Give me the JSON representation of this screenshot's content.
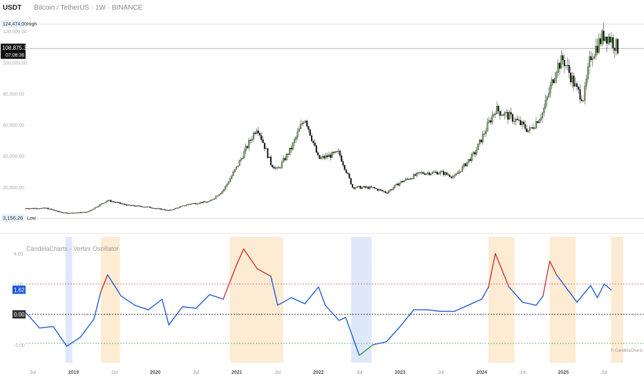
{
  "header": {
    "symbol": "USDT",
    "description": "Bitcoin / TetherUS · 1W · BINANCE"
  },
  "price_axis": {
    "ticks": [
      "120,000.00",
      "100,000.00",
      "80,000.00",
      "60,000.00",
      "40,000.00",
      "20,000.00",
      "0.00"
    ],
    "high_value": "124,474.00",
    "high_label": "High",
    "low_value": "3,156.26",
    "low_label": "Low",
    "current_price": "108,875.33",
    "countdown": "07:08:36"
  },
  "indicator": {
    "title": "CandelaCharts - Vertex Oscillator",
    "ticks": [
      "4.00",
      "2.00",
      "0.00",
      "-2.00"
    ],
    "current_value": "1.62",
    "zero_value": "0.00",
    "watermark": "© CandelaCharts"
  },
  "time_axis": {
    "labels": [
      "Jul",
      "2019",
      "Jul",
      "2020",
      "Jul",
      "2021",
      "Jul",
      "2022",
      "Jul",
      "2023",
      "Jul",
      "2024",
      "Jul",
      "2025",
      "Jul"
    ]
  },
  "colors": {
    "bull_candle": "#6aa84f",
    "bear_candle": "#111111",
    "osc_neutral": "#1f5bd6",
    "osc_overbought": "#d32f2f",
    "osc_oversold": "#2e9e3e",
    "overbought_zone": "#fde6c8",
    "oversold_zone": "#dbe6fb",
    "upper_band": "#e57373",
    "lower_band": "#66bb6a"
  },
  "chart_data": [
    {
      "type": "candlestick",
      "title": "Bitcoin / TetherUS · 1W · BINANCE",
      "x_range": [
        "2018-06",
        "2025-09"
      ],
      "ylim": [
        0,
        124474
      ],
      "close_path": [
        {
          "t": "2018-06",
          "close": 6400
        },
        {
          "t": "2018-09",
          "close": 6500
        },
        {
          "t": "2018-11",
          "close": 4000
        },
        {
          "t": "2018-12",
          "close": 3300
        },
        {
          "t": "2019-03",
          "close": 4000
        },
        {
          "t": "2019-06",
          "close": 11500
        },
        {
          "t": "2019-09",
          "close": 8300
        },
        {
          "t": "2019-12",
          "close": 7200
        },
        {
          "t": "2020-03",
          "close": 5000
        },
        {
          "t": "2020-06",
          "close": 9200
        },
        {
          "t": "2020-09",
          "close": 10800
        },
        {
          "t": "2020-11",
          "close": 18000
        },
        {
          "t": "2021-01",
          "close": 33000
        },
        {
          "t": "2021-04",
          "close": 59000
        },
        {
          "t": "2021-06",
          "close": 35000
        },
        {
          "t": "2021-07",
          "close": 31000
        },
        {
          "t": "2021-09",
          "close": 45000
        },
        {
          "t": "2021-11",
          "close": 65000
        },
        {
          "t": "2022-01",
          "close": 38000
        },
        {
          "t": "2022-04",
          "close": 42000
        },
        {
          "t": "2022-06",
          "close": 20000
        },
        {
          "t": "2022-09",
          "close": 19500
        },
        {
          "t": "2022-11",
          "close": 16500
        },
        {
          "t": "2023-01",
          "close": 23000
        },
        {
          "t": "2023-04",
          "close": 29000
        },
        {
          "t": "2023-07",
          "close": 29500
        },
        {
          "t": "2023-09",
          "close": 26500
        },
        {
          "t": "2023-12",
          "close": 42000
        },
        {
          "t": "2024-03",
          "close": 70000
        },
        {
          "t": "2024-06",
          "close": 63000
        },
        {
          "t": "2024-08",
          "close": 56000
        },
        {
          "t": "2024-10",
          "close": 68000
        },
        {
          "t": "2024-12",
          "close": 97000
        },
        {
          "t": "2025-01",
          "close": 102000
        },
        {
          "t": "2025-03",
          "close": 82000
        },
        {
          "t": "2025-04",
          "close": 77000
        },
        {
          "t": "2025-05",
          "close": 104000
        },
        {
          "t": "2025-07",
          "close": 118000
        },
        {
          "t": "2025-08",
          "close": 115000
        },
        {
          "t": "2025-09",
          "close": 108875
        }
      ]
    },
    {
      "type": "line",
      "title": "CandelaCharts - Vertex Oscillator",
      "ylim": [
        -3.2,
        5.3
      ],
      "upper_threshold": 2.0,
      "lower_threshold": -2.0,
      "series": [
        {
          "t": "2018-06",
          "v": 0.1
        },
        {
          "t": "2018-08",
          "v": -0.9
        },
        {
          "t": "2018-10",
          "v": -0.8
        },
        {
          "t": "2018-12",
          "v": -2.1
        },
        {
          "t": "2019-02",
          "v": -1.5
        },
        {
          "t": "2019-04",
          "v": -0.3
        },
        {
          "t": "2019-05",
          "v": 1.5
        },
        {
          "t": "2019-06",
          "v": 2.6
        },
        {
          "t": "2019-08",
          "v": 1.2
        },
        {
          "t": "2019-10",
          "v": 0.6
        },
        {
          "t": "2019-12",
          "v": 0.3
        },
        {
          "t": "2020-02",
          "v": 1.0
        },
        {
          "t": "2020-03",
          "v": -0.7
        },
        {
          "t": "2020-05",
          "v": 0.5
        },
        {
          "t": "2020-07",
          "v": 0.4
        },
        {
          "t": "2020-09",
          "v": 1.3
        },
        {
          "t": "2020-11",
          "v": 1.0
        },
        {
          "t": "2021-01",
          "v": 3.3
        },
        {
          "t": "2021-02",
          "v": 4.3
        },
        {
          "t": "2021-04",
          "v": 3.0
        },
        {
          "t": "2021-06",
          "v": 2.5
        },
        {
          "t": "2021-07",
          "v": 0.6
        },
        {
          "t": "2021-09",
          "v": 1.1
        },
        {
          "t": "2021-11",
          "v": 0.7
        },
        {
          "t": "2022-01",
          "v": 1.8
        },
        {
          "t": "2022-02",
          "v": 0.6
        },
        {
          "t": "2022-04",
          "v": -0.4
        },
        {
          "t": "2022-05",
          "v": -0.2
        },
        {
          "t": "2022-07",
          "v": -2.7
        },
        {
          "t": "2022-09",
          "v": -2.0
        },
        {
          "t": "2022-11",
          "v": -1.8
        },
        {
          "t": "2023-01",
          "v": -0.8
        },
        {
          "t": "2023-03",
          "v": 0.3
        },
        {
          "t": "2023-05",
          "v": 0.3
        },
        {
          "t": "2023-07",
          "v": 0.2
        },
        {
          "t": "2023-09",
          "v": 0.2
        },
        {
          "t": "2023-11",
          "v": 0.6
        },
        {
          "t": "2024-01",
          "v": 1.0
        },
        {
          "t": "2024-02",
          "v": 1.8
        },
        {
          "t": "2024-03",
          "v": 4.0
        },
        {
          "t": "2024-05",
          "v": 1.8
        },
        {
          "t": "2024-07",
          "v": 0.8
        },
        {
          "t": "2024-09",
          "v": 0.6
        },
        {
          "t": "2024-10",
          "v": 1.2
        },
        {
          "t": "2024-11",
          "v": 3.5
        },
        {
          "t": "2024-12",
          "v": 2.6
        },
        {
          "t": "2025-02",
          "v": 1.4
        },
        {
          "t": "2025-03",
          "v": 0.8
        },
        {
          "t": "2025-05",
          "v": 1.9
        },
        {
          "t": "2025-06",
          "v": 1.1
        },
        {
          "t": "2025-07",
          "v": 2.0
        },
        {
          "t": "2025-08",
          "v": 1.62
        }
      ],
      "overbought_zones": [
        [
          "2019-05",
          "2019-07"
        ],
        [
          "2020-12",
          "2021-07"
        ],
        [
          "2024-02",
          "2024-05"
        ],
        [
          "2024-11",
          "2025-02"
        ],
        [
          "2025-08",
          "2025-09"
        ]
      ],
      "oversold_zones": [
        [
          "2018-12",
          "2018-12"
        ],
        [
          "2022-06",
          "2022-08"
        ]
      ]
    }
  ]
}
